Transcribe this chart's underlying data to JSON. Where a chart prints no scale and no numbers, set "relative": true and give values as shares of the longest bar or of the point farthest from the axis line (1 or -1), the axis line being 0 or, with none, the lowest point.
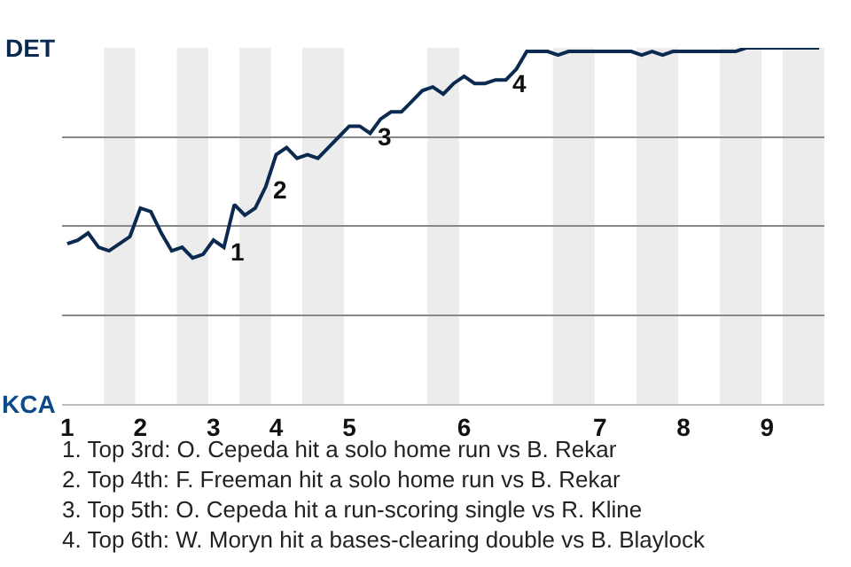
{
  "chart_data": {
    "type": "line",
    "relative": true,
    "categories": [
      "1",
      null,
      null,
      null,
      null,
      null,
      null,
      "2",
      null,
      null,
      null,
      null,
      null,
      null,
      "3",
      null,
      null,
      null,
      null,
      null,
      "4",
      null,
      null,
      null,
      null,
      null,
      null,
      "5",
      null,
      null,
      null,
      null,
      null,
      null,
      null,
      null,
      null,
      null,
      "6",
      null,
      null,
      null,
      null,
      null,
      null,
      null,
      null,
      null,
      null,
      null,
      null,
      "7",
      null,
      null,
      null,
      null,
      null,
      null,
      null,
      "8",
      null,
      null,
      null,
      null,
      null,
      null,
      null,
      "9",
      null,
      null,
      null,
      null,
      null
    ],
    "series": [
      {
        "color": "#0b2a4f",
        "values": [
          0.45,
          0.46,
          0.48,
          0.44,
          0.43,
          0.45,
          0.47,
          0.55,
          0.54,
          0.48,
          0.43,
          0.44,
          0.41,
          0.42,
          0.46,
          0.44,
          0.56,
          0.53,
          0.55,
          0.61,
          0.7,
          0.72,
          0.69,
          0.7,
          0.69,
          0.72,
          0.75,
          0.78,
          0.78,
          0.76,
          0.8,
          0.82,
          0.82,
          0.85,
          0.88,
          0.89,
          0.87,
          0.9,
          0.92,
          0.9,
          0.9,
          0.91,
          0.91,
          0.94,
          0.99,
          0.99,
          0.99,
          0.98,
          0.99,
          0.99,
          0.99,
          0.99,
          0.99,
          0.99,
          0.99,
          0.98,
          0.99,
          0.98,
          0.99,
          0.99,
          0.99,
          0.99,
          0.99,
          0.99,
          0.99,
          1,
          1,
          1,
          1,
          1,
          1,
          1,
          1
        ]
      }
    ],
    "grid": "y",
    "marker": "none",
    "line_style": "solid",
    "annotations": [
      "DET",
      "KCA",
      "1",
      "2",
      "3",
      "4",
      "1. Top 3rd: O. Cepeda hit a solo home run vs B. Rekar",
      "2. Top 4th: F. Freeman hit a solo home run vs B. Rekar",
      "3. Top 5th: O. Cepeda hit a run-scoring single vs R. Kline",
      "4. Top 6th: W. Moryn hit a bases-clearing double vs B. Blaylock"
    ]
  }
}
